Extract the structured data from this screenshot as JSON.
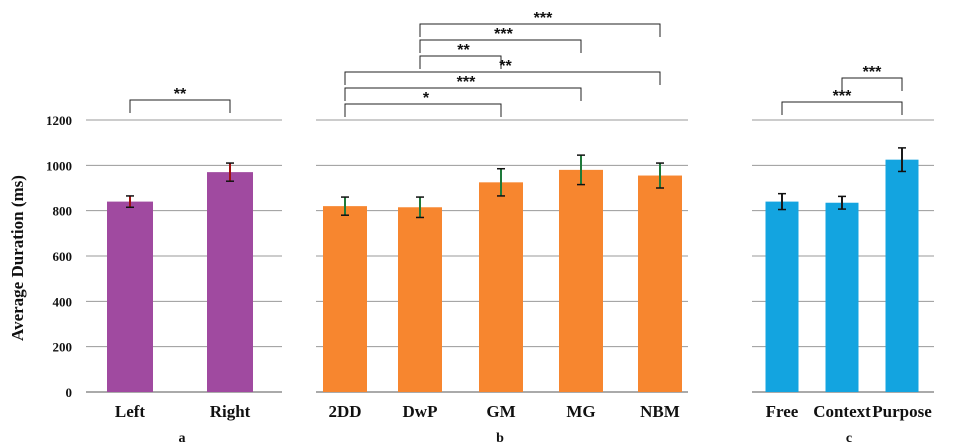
{
  "chart_data": [
    {
      "type": "bar",
      "panel_label": "a",
      "ylabel": "Average Duration (ms)",
      "ylim": [
        0,
        1200
      ],
      "yticks": [
        0,
        200,
        400,
        600,
        800,
        1000,
        1200
      ],
      "grid": true,
      "categories": [
        "Left",
        "Right"
      ],
      "values": [
        840,
        970
      ],
      "errors": [
        25,
        40
      ],
      "color": "#a04aa0",
      "error_color": "#a01010",
      "significance": [
        {
          "from": 0,
          "to": 1,
          "label": "**"
        }
      ]
    },
    {
      "type": "bar",
      "panel_label": "b",
      "ylim": [
        0,
        1200
      ],
      "grid": true,
      "categories": [
        "2DD",
        "DwP",
        "GM",
        "MG",
        "NBM"
      ],
      "values": [
        820,
        815,
        925,
        980,
        955
      ],
      "errors": [
        40,
        45,
        60,
        65,
        55
      ],
      "color": "#f7862f",
      "error_color": "#1e7a3a",
      "significance": [
        {
          "from": 1,
          "to": 4,
          "label": "***"
        },
        {
          "from": 1,
          "to": 3,
          "label": "***"
        },
        {
          "from": 1,
          "to": 2,
          "label": "**"
        },
        {
          "from": 0,
          "to": 4,
          "label": "**"
        },
        {
          "from": 0,
          "to": 3,
          "label": "***"
        },
        {
          "from": 0,
          "to": 2,
          "label": "*"
        }
      ]
    },
    {
      "type": "bar",
      "panel_label": "c",
      "ylim": [
        0,
        1200
      ],
      "grid": true,
      "categories": [
        "Free",
        "Context",
        "Purpose"
      ],
      "values": [
        840,
        835,
        1025
      ],
      "errors": [
        35,
        28,
        52
      ],
      "color": "#13a4e0",
      "error_color": "#1a1a1a",
      "significance": [
        {
          "from": 1,
          "to": 2,
          "label": "***"
        },
        {
          "from": 0,
          "to": 2,
          "label": "***"
        }
      ]
    }
  ]
}
